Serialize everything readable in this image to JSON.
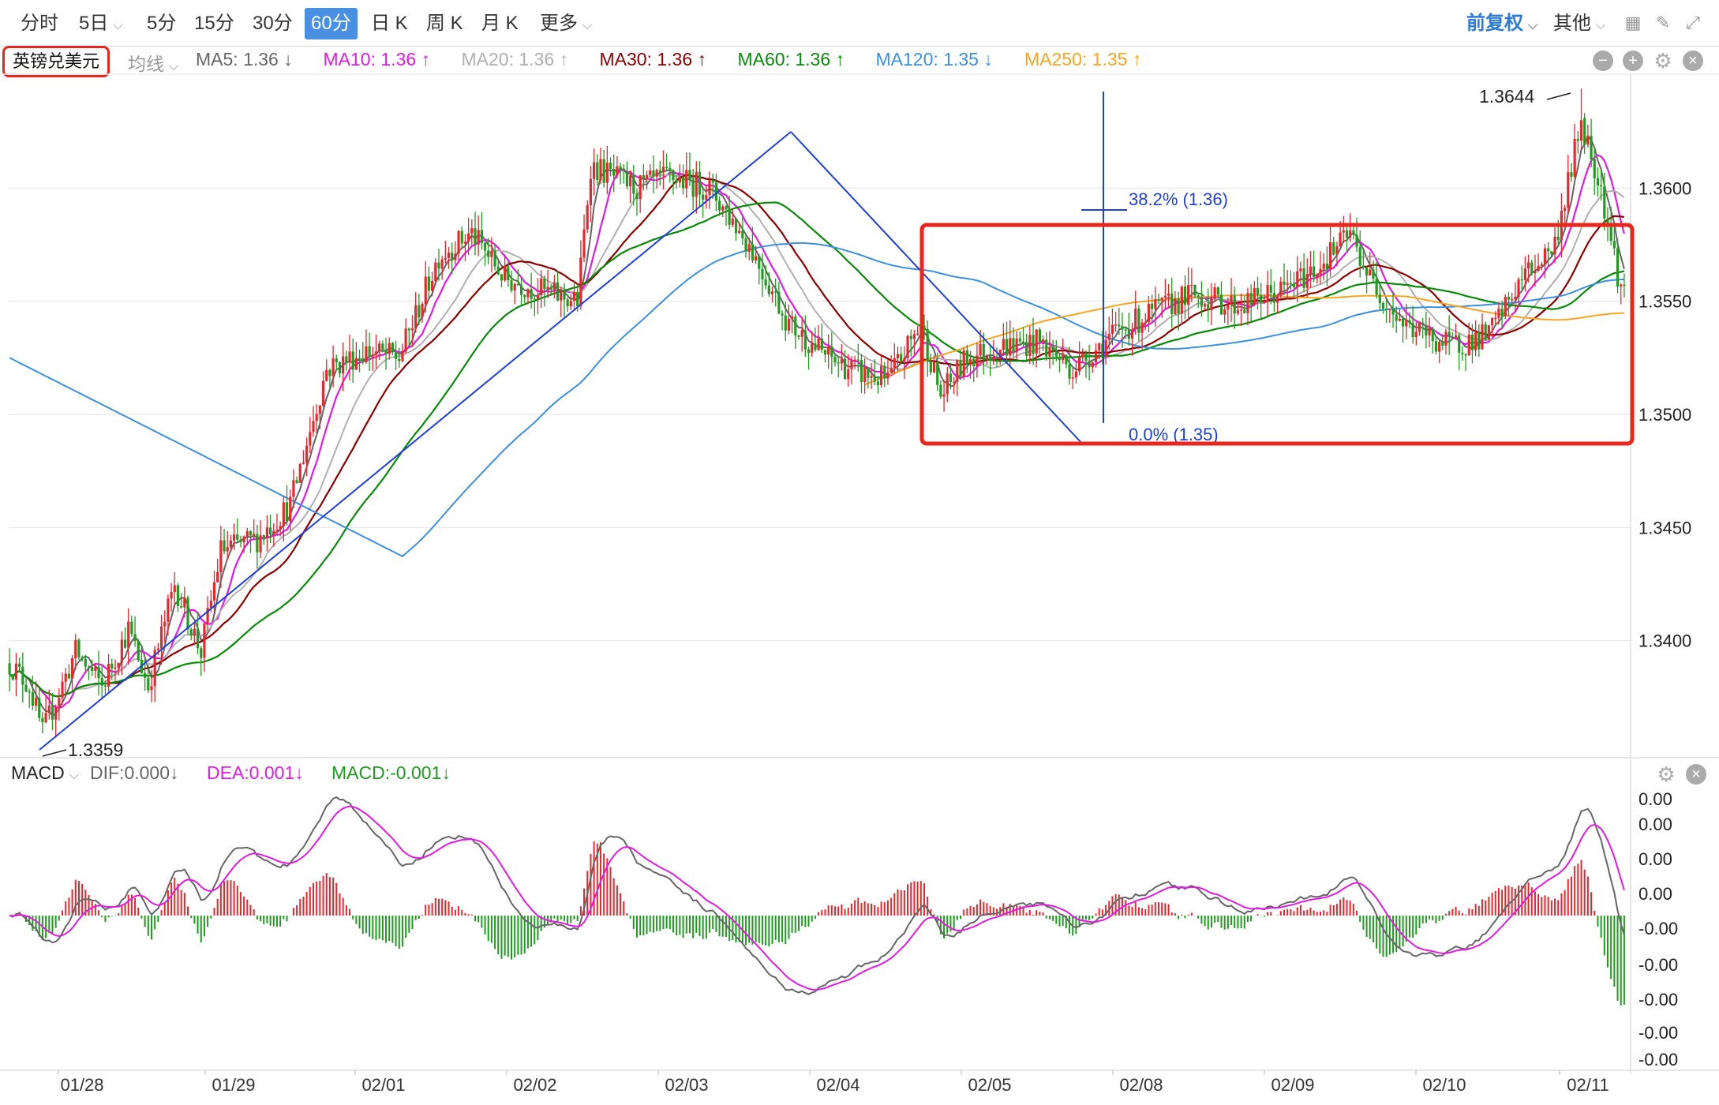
{
  "toolbar": {
    "periods": [
      "分时",
      "5日",
      "5分",
      "15分",
      "30分",
      "60分",
      "日 K",
      "周 K",
      "月 K",
      "更多"
    ],
    "active_period": "60分",
    "adjust": "前复权",
    "other": "其他"
  },
  "header": {
    "symbol": "英镑兑美元",
    "ma_type": "均线",
    "ma": [
      {
        "label": "MA5: 1.36",
        "arrow": "↓",
        "color": "#666666"
      },
      {
        "label": "MA10: 1.36",
        "arrow": "↑",
        "color": "#e21be0"
      },
      {
        "label": "MA20: 1.36",
        "arrow": "↑",
        "color": "#b0b0b0"
      },
      {
        "label": "MA30: 1.36",
        "arrow": "↑",
        "color": "#8b0000"
      },
      {
        "label": "MA60: 1.36",
        "arrow": "↑",
        "color": "#0a8a0a"
      },
      {
        "label": "MA120: 1.35",
        "arrow": "↓",
        "color": "#3d8fe0"
      },
      {
        "label": "MA250: 1.35",
        "arrow": "↑",
        "color": "#f5a623"
      }
    ]
  },
  "macd_header": {
    "name": "MACD",
    "dif": "DIF:0.000",
    "dea": "DEA:0.001",
    "macd": "MACD:-0.001",
    "arrow": "↓"
  },
  "colors": {
    "up": "#e8262d",
    "down": "#1f9b1f",
    "box": "#e8261d",
    "fib": "#1f3fd6"
  },
  "chart_data": [
    {
      "type": "candlestick",
      "title": "英镑兑美元",
      "period": "60分",
      "ylim": [
        1.335,
        1.365
      ],
      "y_ticks": [
        "1.3600",
        "1.3550",
        "1.3500",
        "1.3450",
        "1.3400"
      ],
      "x_ticks": [
        "01/28",
        "01/29",
        "02/01",
        "02/02",
        "02/03",
        "02/04",
        "02/05",
        "02/08",
        "02/09",
        "02/10",
        "02/11"
      ],
      "anchors": [
        [
          0,
          1.339
        ],
        [
          6,
          1.338
        ],
        [
          10,
          1.3359
        ],
        [
          20,
          1.3395
        ],
        [
          28,
          1.338
        ],
        [
          36,
          1.3405
        ],
        [
          42,
          1.338
        ],
        [
          50,
          1.3425
        ],
        [
          58,
          1.3395
        ],
        [
          64,
          1.344
        ],
        [
          75,
          1.3445
        ],
        [
          85,
          1.346
        ],
        [
          96,
          1.352
        ],
        [
          108,
          1.3528
        ],
        [
          118,
          1.3525
        ],
        [
          130,
          1.357
        ],
        [
          140,
          1.358
        ],
        [
          150,
          1.356
        ],
        [
          160,
          1.3555
        ],
        [
          172,
          1.355
        ],
        [
          176,
          1.361
        ],
        [
          190,
          1.36
        ],
        [
          200,
          1.3605
        ],
        [
          212,
          1.36
        ],
        [
          224,
          1.3575
        ],
        [
          236,
          1.354
        ],
        [
          248,
          1.3525
        ],
        [
          258,
          1.3518
        ],
        [
          266,
          1.3515
        ],
        [
          276,
          1.354
        ],
        [
          282,
          1.3508
        ],
        [
          290,
          1.3525
        ],
        [
          300,
          1.353
        ],
        [
          312,
          1.3532
        ],
        [
          322,
          1.352
        ],
        [
          334,
          1.3535
        ],
        [
          346,
          1.3545
        ],
        [
          358,
          1.3553
        ],
        [
          372,
          1.3548
        ],
        [
          386,
          1.3555
        ],
        [
          396,
          1.3565
        ],
        [
          406,
          1.358
        ],
        [
          412,
          1.356
        ],
        [
          422,
          1.354
        ],
        [
          436,
          1.353
        ],
        [
          448,
          1.3535
        ],
        [
          458,
          1.356
        ],
        [
          468,
          1.3575
        ],
        [
          476,
          1.363
        ],
        [
          482,
          1.36
        ],
        [
          488,
          1.3555
        ]
      ],
      "annotations": {
        "high_label": "1.3644",
        "low_label": "1.3359",
        "fib_382": "38.2% (1.36)",
        "fib_0": "0.0% (1.35)"
      },
      "moving_averages": [
        "MA5",
        "MA10",
        "MA20",
        "MA30",
        "MA60",
        "MA120",
        "MA250"
      ]
    },
    {
      "type": "bar+line",
      "title": "MACD",
      "y_ticks": [
        "0.00",
        "0.00",
        "0.00",
        "0.00",
        "-0.00",
        "-0.00",
        "-0.00",
        "-0.00",
        "-0.00"
      ],
      "series": [
        {
          "name": "DIF",
          "values_note": "0.000"
        },
        {
          "name": "DEA",
          "values_note": "0.001"
        },
        {
          "name": "MACD",
          "values_note": "-0.001"
        }
      ]
    }
  ]
}
